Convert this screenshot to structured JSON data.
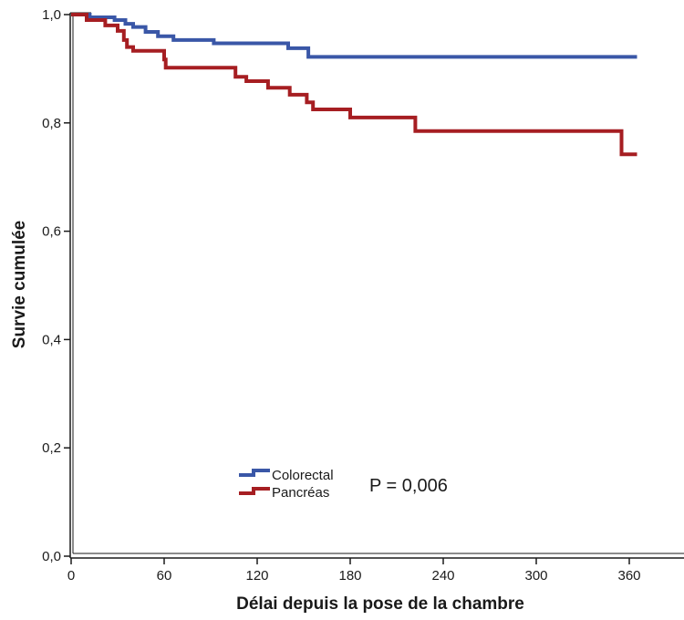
{
  "chart_data": {
    "type": "line",
    "step": true,
    "xlabel": "Délai depuis la pose de la chambre",
    "ylabel": "Survie cumulée",
    "xlim": [
      0,
      395
    ],
    "ylim": [
      0,
      1.0
    ],
    "xticks": [
      0,
      60,
      120,
      180,
      240,
      300,
      360
    ],
    "xtick_labels": [
      "0",
      "60",
      "120",
      "180",
      "240",
      "300",
      "360"
    ],
    "yticks": [
      0.0,
      0.2,
      0.4,
      0.6,
      0.8,
      1.0
    ],
    "ytick_labels": [
      "0,0",
      "0,2",
      "0,4",
      "0,6",
      "0,8",
      "1,0"
    ],
    "grid": false,
    "legend_position": "bottom-left",
    "series": [
      {
        "name": "Colorectal",
        "color": "#3a57a7",
        "x": [
          0,
          12,
          28,
          35,
          40,
          48,
          56,
          66,
          92,
          140,
          153,
          365
        ],
        "y": [
          1.0,
          0.995,
          0.99,
          0.983,
          0.977,
          0.968,
          0.96,
          0.953,
          0.947,
          0.938,
          0.922,
          0.922
        ]
      },
      {
        "name": "Pancréas",
        "color": "#a61e22",
        "x": [
          0,
          10,
          22,
          30,
          34,
          36,
          40,
          60,
          61,
          106,
          113,
          127,
          141,
          152,
          156,
          180,
          222,
          355,
          365
        ],
        "y": [
          1.0,
          0.99,
          0.98,
          0.97,
          0.953,
          0.94,
          0.933,
          0.917,
          0.902,
          0.885,
          0.877,
          0.865,
          0.852,
          0.838,
          0.825,
          0.81,
          0.785,
          0.742,
          0.742
        ]
      }
    ],
    "annotation": "P = 0,006"
  }
}
